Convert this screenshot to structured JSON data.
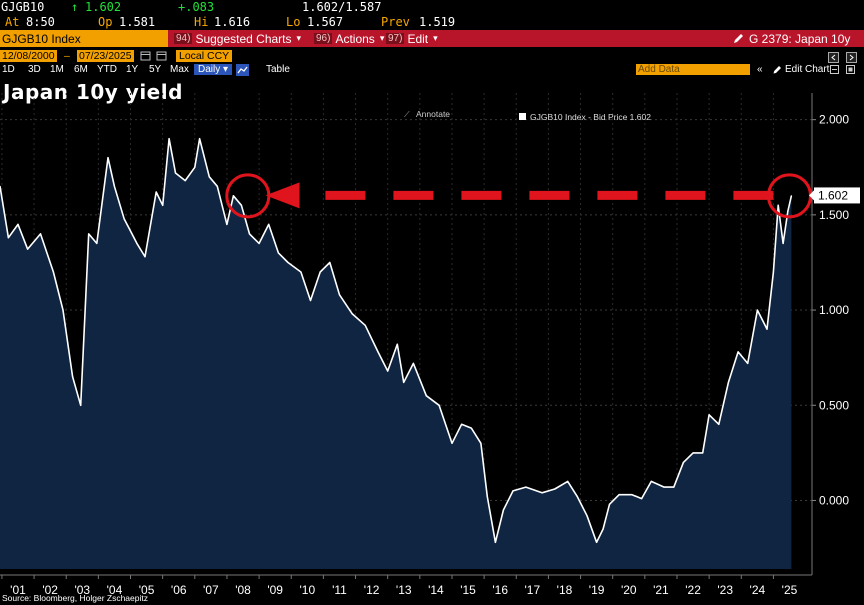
{
  "quote": {
    "ticker": "GJGB10",
    "up_arrow": "↑",
    "last": "1.602",
    "change": "+.083",
    "bid_ask": "1.602/1.587",
    "at_label": "At",
    "at_value": "8:50",
    "op_label": "Op",
    "op_value": "1.581",
    "hi_label": "Hi",
    "hi_value": "1.616",
    "lo_label": "Lo",
    "lo_value": "1.567",
    "prev_label": "Prev",
    "prev_value": "1.519"
  },
  "toolbar": {
    "index_label": "GJGB10 Index",
    "suggested_num": "94)",
    "suggested_label": "Suggested Charts",
    "actions_num": "96)",
    "actions_label": "Actions",
    "edit_num": "97)",
    "edit_label": "Edit",
    "chart_id": "G 2379: Japan 10y",
    "caret": "▾"
  },
  "range_bar": {
    "start_date": "12/08/2000",
    "end_date": "07/23/2025",
    "currency": "Local CCY"
  },
  "period_bar": {
    "periods": [
      "1D",
      "3D",
      "1M",
      "6M",
      "YTD",
      "1Y",
      "5Y",
      "Max"
    ],
    "frequency": "Daily",
    "table_label": "Table",
    "add_data_label": "Add Data",
    "edit_chart_label": "Edit Chart",
    "double_chevron": "«"
  },
  "annotate_label": "Annotate",
  "legend_label": "GJGB10 Index - Bid Price 1.602",
  "last_price_tag": "1.602",
  "source": "Source: Bloomberg, Holger Zschaepitz",
  "colors": {
    "line": "#ffffff",
    "area_fill": "#0f2542",
    "annotation_red": "#e0141c",
    "toolbar_red": "#b8152b",
    "amber": "#f1a000"
  },
  "chart_data": {
    "type": "area",
    "title": "Japan 10y yield",
    "series": [
      {
        "name": "GJGB10 Index - Bid Price",
        "x": [
          2000.94,
          2001.2,
          2001.5,
          2001.8,
          2002.2,
          2002.6,
          2002.9,
          2003.2,
          2003.45,
          2003.7,
          2003.95,
          2004.3,
          2004.5,
          2004.8,
          2005.2,
          2005.45,
          2005.8,
          2006.0,
          2006.2,
          2006.4,
          2006.7,
          2007.0,
          2007.15,
          2007.45,
          2007.7,
          2008.0,
          2008.2,
          2008.45,
          2008.7,
          2009.0,
          2009.3,
          2009.6,
          2009.9,
          2010.3,
          2010.6,
          2010.9,
          2011.2,
          2011.5,
          2011.9,
          2012.3,
          2012.7,
          2013.0,
          2013.3,
          2013.5,
          2013.8,
          2014.2,
          2014.6,
          2015.0,
          2015.3,
          2015.6,
          2015.9,
          2016.1,
          2016.35,
          2016.6,
          2016.9,
          2017.3,
          2017.8,
          2018.2,
          2018.6,
          2018.9,
          2019.2,
          2019.5,
          2019.7,
          2019.9,
          2020.2,
          2020.6,
          2020.9,
          2021.2,
          2021.6,
          2021.9,
          2022.2,
          2022.5,
          2022.8,
          2023.0,
          2023.3,
          2023.6,
          2023.9,
          2024.2,
          2024.5,
          2024.8,
          2025.0,
          2025.15,
          2025.3,
          2025.45,
          2025.56
        ],
        "y": [
          1.65,
          1.38,
          1.45,
          1.32,
          1.4,
          1.2,
          1.0,
          0.65,
          0.5,
          1.4,
          1.35,
          1.8,
          1.65,
          1.48,
          1.35,
          1.28,
          1.62,
          1.55,
          1.9,
          1.72,
          1.68,
          1.75,
          1.9,
          1.7,
          1.65,
          1.45,
          1.6,
          1.55,
          1.4,
          1.35,
          1.45,
          1.3,
          1.25,
          1.2,
          1.05,
          1.2,
          1.25,
          1.08,
          0.98,
          0.92,
          0.78,
          0.68,
          0.82,
          0.62,
          0.72,
          0.55,
          0.5,
          0.3,
          0.4,
          0.38,
          0.3,
          0.02,
          -0.22,
          -0.05,
          0.05,
          0.07,
          0.04,
          0.06,
          0.1,
          0.02,
          -0.08,
          -0.22,
          -0.15,
          -0.02,
          0.03,
          0.03,
          0.01,
          0.1,
          0.07,
          0.07,
          0.2,
          0.25,
          0.25,
          0.45,
          0.4,
          0.62,
          0.78,
          0.72,
          1.0,
          0.9,
          1.2,
          1.55,
          1.35,
          1.52,
          1.6
        ]
      }
    ],
    "x_tick_labels": [
      "'01",
      "'02",
      "'03",
      "'04",
      "'05",
      "'06",
      "'07",
      "'08",
      "'09",
      "'10",
      "'11",
      "'12",
      "'13",
      "'14",
      "'15",
      "'16",
      "'17",
      "'18",
      "'19",
      "'20",
      "'21",
      "'22",
      "'23",
      "'24",
      "'25"
    ],
    "x_tick_values": [
      2001.5,
      2002.5,
      2003.5,
      2004.5,
      2005.5,
      2006.5,
      2007.5,
      2008.5,
      2009.5,
      2010.5,
      2011.5,
      2012.5,
      2013.5,
      2014.5,
      2015.5,
      2016.5,
      2017.5,
      2018.5,
      2019.5,
      2020.5,
      2021.5,
      2022.5,
      2023.5,
      2024.5,
      2025.5
    ],
    "y_ticks": [
      0.0,
      0.5,
      1.0,
      1.5,
      2.0
    ],
    "y_tick_labels": [
      "0.000",
      "0.500",
      "1.000",
      "1.500",
      "2.000"
    ],
    "xlim": [
      2000.94,
      2026.2
    ],
    "ylim": [
      -0.36,
      2.14
    ],
    "grid": true,
    "legend_position": "top-center",
    "annotations": {
      "circled_points": [
        {
          "x": 2008.65,
          "y": 1.6
        },
        {
          "x": 2025.5,
          "y": 1.6
        }
      ],
      "dashed_arrow": {
        "from_x": 2025.0,
        "to_x": 2009.2,
        "y": 1.602
      }
    }
  }
}
